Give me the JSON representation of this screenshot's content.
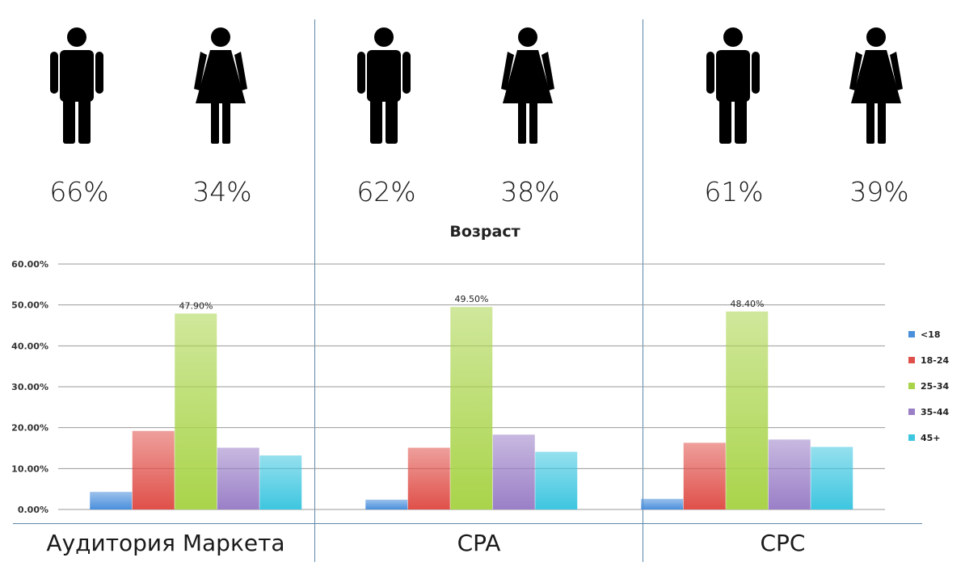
{
  "panels": [
    {
      "male_pct": "66%",
      "female_pct": "34%",
      "label": "Аудитория Маркета"
    },
    {
      "male_pct": "62%",
      "female_pct": "38%",
      "label": "CPA"
    },
    {
      "male_pct": "61%",
      "female_pct": "39%",
      "label": "CPC"
    }
  ],
  "icons": {
    "male": "male-figure-icon",
    "female": "female-figure-icon"
  },
  "chart_data": {
    "type": "bar",
    "title": "Возраст",
    "categories": [
      "Аудитория Маркета",
      "CPA",
      "CPC"
    ],
    "series": [
      {
        "name": "<18",
        "color": "#4a8fdc",
        "values": [
          4.3,
          2.4,
          2.6
        ]
      },
      {
        "name": "18-24",
        "color": "#e0504a",
        "values": [
          19.2,
          15.1,
          16.3
        ]
      },
      {
        "name": "25-34",
        "color": "#a9d44a",
        "values": [
          47.9,
          49.5,
          48.4
        ]
      },
      {
        "name": "35-44",
        "color": "#9a7fc7",
        "values": [
          15.1,
          18.3,
          17.1
        ]
      },
      {
        "name": "45+",
        "color": "#3ec6e0",
        "values": [
          13.2,
          14.1,
          15.3
        ]
      }
    ],
    "data_labels": [
      {
        "category": "Аудитория Маркета",
        "series": "25-34",
        "text": "47.90%"
      },
      {
        "category": "CPA",
        "series": "25-34",
        "text": "49.50%"
      },
      {
        "category": "CPC",
        "series": "25-34",
        "text": "48.40%"
      }
    ],
    "yticks": [
      "0.00%",
      "10.00%",
      "20.00%",
      "30.00%",
      "40.00%",
      "50.00%",
      "60.00%"
    ],
    "ylim": [
      0,
      60
    ],
    "grid": true,
    "legend": "right"
  }
}
